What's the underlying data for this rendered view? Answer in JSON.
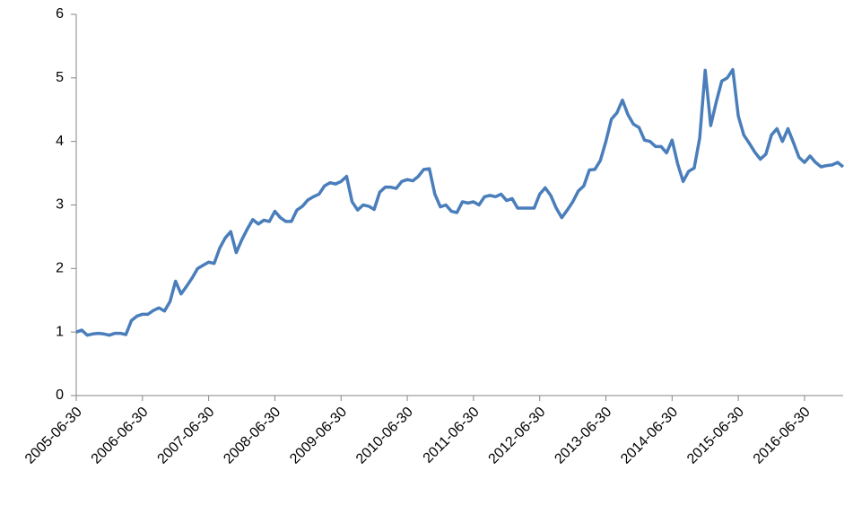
{
  "chart_data": {
    "type": "line",
    "categories": [
      "2005-06-30",
      null,
      null,
      null,
      null,
      null,
      null,
      null,
      null,
      null,
      null,
      null,
      "2006-06-30",
      null,
      null,
      null,
      null,
      null,
      null,
      null,
      null,
      null,
      null,
      null,
      "2007-06-30",
      null,
      null,
      null,
      null,
      null,
      null,
      null,
      null,
      null,
      null,
      null,
      "2008-06-30",
      null,
      null,
      null,
      null,
      null,
      null,
      null,
      null,
      null,
      null,
      null,
      "2009-06-30",
      null,
      null,
      null,
      null,
      null,
      null,
      null,
      null,
      null,
      null,
      null,
      "2010-06-30",
      null,
      null,
      null,
      null,
      null,
      null,
      null,
      null,
      null,
      null,
      null,
      "2011-06-30",
      null,
      null,
      null,
      null,
      null,
      null,
      null,
      null,
      null,
      null,
      null,
      "2012-06-30",
      null,
      null,
      null,
      null,
      null,
      null,
      null,
      null,
      null,
      null,
      null,
      "2013-06-30",
      null,
      null,
      null,
      null,
      null,
      null,
      null,
      null,
      null,
      null,
      null,
      "2014-06-30",
      null,
      null,
      null,
      null,
      null,
      null,
      null,
      null,
      null,
      null,
      null,
      "2015-06-30",
      null,
      null,
      null,
      null,
      null,
      null,
      null,
      null,
      null,
      null,
      null,
      "2016-06-30",
      null,
      null,
      null,
      null,
      null,
      null,
      null
    ],
    "series": [
      {
        "color": "#4a7ebb",
        "values": [
          1.0,
          1.03,
          0.95,
          0.97,
          0.98,
          0.97,
          0.95,
          0.98,
          0.98,
          0.96,
          1.18,
          1.25,
          1.28,
          1.28,
          1.34,
          1.38,
          1.33,
          1.48,
          1.8,
          1.6,
          1.72,
          1.85,
          2.0,
          2.05,
          2.1,
          2.08,
          2.32,
          2.48,
          2.58,
          2.25,
          2.45,
          2.62,
          2.77,
          2.7,
          2.76,
          2.74,
          2.9,
          2.8,
          2.74,
          2.74,
          2.92,
          2.98,
          3.08,
          3.13,
          3.17,
          3.3,
          3.35,
          3.33,
          3.37,
          3.45,
          3.05,
          2.92,
          3.0,
          2.98,
          2.93,
          3.2,
          3.28,
          3.28,
          3.26,
          3.37,
          3.4,
          3.38,
          3.45,
          3.56,
          3.57,
          3.17,
          2.97,
          3.0,
          2.9,
          2.88,
          3.05,
          3.03,
          3.05,
          3.0,
          3.13,
          3.15,
          3.13,
          3.17,
          3.07,
          3.1,
          2.95,
          2.95,
          2.95,
          2.95,
          3.17,
          3.27,
          3.15,
          2.95,
          2.8,
          2.92,
          3.05,
          3.22,
          3.3,
          3.55,
          3.56,
          3.7,
          4.0,
          4.35,
          4.45,
          4.65,
          4.42,
          4.27,
          4.22,
          4.02,
          4.0,
          3.92,
          3.92,
          3.82,
          4.02,
          3.65,
          3.37,
          3.53,
          3.58,
          4.05,
          5.12,
          4.25,
          4.62,
          4.95,
          5.0,
          5.13,
          4.4,
          4.1,
          3.97,
          3.83,
          3.72,
          3.8,
          4.1,
          4.2,
          4.0,
          4.2,
          3.98,
          3.75,
          3.67,
          3.77,
          3.67,
          3.6,
          3.62,
          3.63,
          3.67,
          3.6
        ]
      }
    ],
    "ylim": [
      0,
      6
    ],
    "yticks": [
      0,
      1,
      2,
      3,
      4,
      5,
      6
    ],
    "grid": false
  }
}
